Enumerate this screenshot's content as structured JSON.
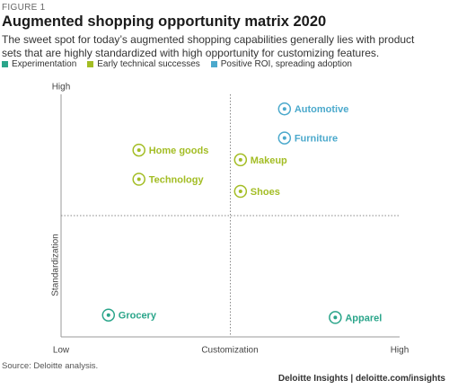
{
  "chart_data": {
    "type": "scatter",
    "figure_label": "FIGURE 1",
    "title": "Augmented shopping opportunity matrix 2020",
    "subtitle": "The sweet spot for today’s augmented shopping capabilities generally lies with product sets that are highly standardized with high opportunity for customizing features.",
    "x_label": "Customization",
    "y_label": "Standardization",
    "xlim": [
      0,
      10
    ],
    "ylim": [
      0,
      10
    ],
    "xticks": [
      {
        "value": 0,
        "label": "Low"
      },
      {
        "value": 10,
        "label": "High"
      }
    ],
    "yticks": [
      {
        "value": 10,
        "label": "High"
      }
    ],
    "series": [
      {
        "name": "Experimentation",
        "color": "#2aa58a",
        "labels": [
          "Grocery",
          "Apparel"
        ],
        "x": [
          1.4,
          8.1
        ],
        "values": [
          0.9,
          0.8
        ]
      },
      {
        "name": "Early technical successes",
        "color": "#a3bd24",
        "labels": [
          "Home goods",
          "Technology",
          "Makeup",
          "Shoes"
        ],
        "x": [
          2.3,
          2.3,
          5.3,
          5.3
        ],
        "values": [
          7.7,
          6.5,
          7.3,
          6.0
        ]
      },
      {
        "name": "Positive ROI, spreading adoption",
        "color": "#4ba9cc",
        "labels": [
          "Automotive",
          "Furniture"
        ],
        "x": [
          6.6,
          6.6
        ],
        "values": [
          9.4,
          8.2
        ]
      }
    ],
    "source": "Source: Deloitte analysis.",
    "credit": "Deloitte Insights | deloitte.com/insights"
  }
}
